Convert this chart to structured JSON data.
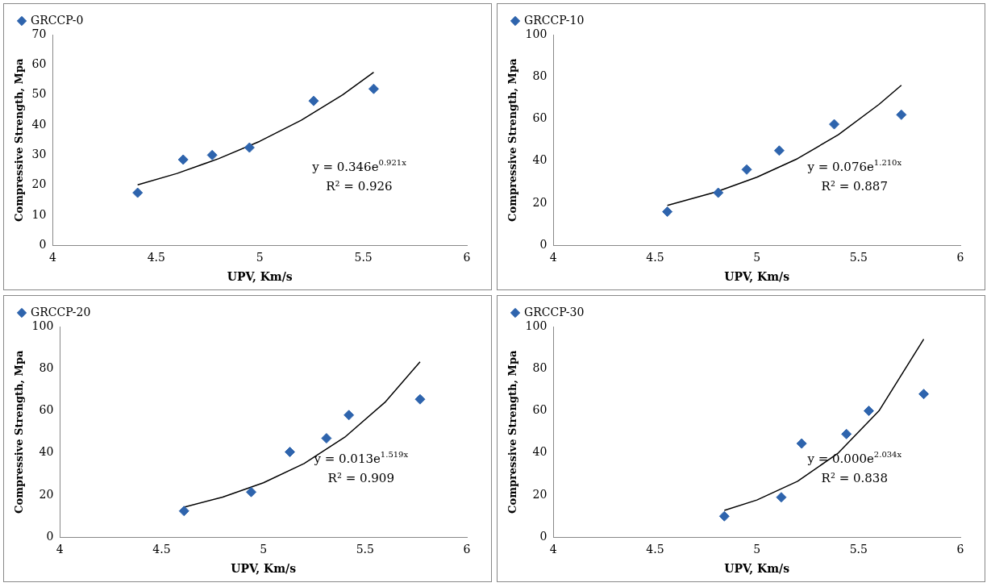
{
  "chart_data": [
    {
      "type": "scatter",
      "xlabel": "UPV, Km/s",
      "ylabel": "Compressive Strength, Mpa",
      "xlim": [
        4,
        6
      ],
      "xticks": [
        4,
        4.5,
        5,
        5.5,
        6
      ],
      "ylim": [
        0,
        70
      ],
      "yticks": [
        0,
        10,
        20,
        30,
        40,
        50,
        60,
        70
      ],
      "grid": false,
      "legend": "top",
      "marker": "diamond",
      "series": [
        {
          "name": "GRCCP-0",
          "color": "#2e64ad",
          "x": [
            4.41,
            4.63,
            4.77,
            4.95,
            5.26,
            5.55
          ],
          "values": [
            17.5,
            28.5,
            30,
            32.5,
            48,
            52
          ]
        },
        {
          "type": "line",
          "color": "#000000",
          "marker": "none",
          "line_style": "solid",
          "x": [
            4.41,
            4.6,
            4.8,
            5.0,
            5.2,
            5.4,
            5.55
          ],
          "values": [
            20.1,
            23.9,
            28.8,
            34.6,
            41.6,
            50,
            57.5
          ]
        }
      ],
      "annotations": [
        "y = 0.346e$^{0.921x}$",
        "R² = 0.926"
      ]
    },
    {
      "type": "scatter",
      "xlabel": "UPV, Km/s",
      "ylabel": "Compressive Strength, Mpa",
      "xlim": [
        4,
        6
      ],
      "xticks": [
        4,
        4.5,
        5,
        5.5,
        6
      ],
      "ylim": [
        0,
        100
      ],
      "yticks": [
        0,
        20,
        40,
        60,
        80,
        100
      ],
      "grid": false,
      "legend": "top",
      "marker": "diamond",
      "series": [
        {
          "name": "GRCCP-10",
          "color": "#2e64ad",
          "x": [
            4.56,
            4.81,
            4.95,
            5.11,
            5.38,
            5.71
          ],
          "values": [
            16,
            25,
            36,
            45,
            57.5,
            62
          ]
        },
        {
          "type": "line",
          "color": "#000000",
          "marker": "none",
          "line_style": "solid",
          "x": [
            4.56,
            4.8,
            5.0,
            5.2,
            5.4,
            5.6,
            5.71
          ],
          "values": [
            19,
            25.4,
            32.4,
            41.2,
            52.5,
            66.9,
            76
          ]
        }
      ],
      "annotations": [
        "y = 0.076e$^{1.210x}$",
        "R² = 0.887"
      ]
    },
    {
      "type": "scatter",
      "xlabel": "UPV, Km/s",
      "ylabel": "Compressive Strength, Mpa",
      "xlim": [
        4,
        6
      ],
      "xticks": [
        4,
        4.5,
        5,
        5.5,
        6
      ],
      "ylim": [
        0,
        100
      ],
      "yticks": [
        0,
        20,
        40,
        60,
        80,
        100
      ],
      "grid": false,
      "legend": "top",
      "marker": "diamond",
      "series": [
        {
          "name": "GRCCP-20",
          "color": "#2e64ad",
          "x": [
            4.61,
            4.94,
            5.13,
            5.31,
            5.42,
            5.77
          ],
          "values": [
            12.5,
            21.5,
            40.5,
            47,
            58,
            65.5
          ]
        },
        {
          "type": "line",
          "color": "#000000",
          "marker": "none",
          "line_style": "solid",
          "x": [
            4.61,
            4.8,
            5.0,
            5.2,
            5.4,
            5.6,
            5.77
          ],
          "values": [
            14.3,
            19.1,
            25.9,
            35,
            47.5,
            64.3,
            83.3
          ]
        }
      ],
      "annotations": [
        "y = 0.013e$^{1.519x}$",
        "R² = 0.909"
      ]
    },
    {
      "type": "scatter",
      "xlabel": "UPV, Km/s",
      "ylabel": "Compressive Strength, Mpa",
      "xlim": [
        4,
        6
      ],
      "xticks": [
        4,
        4.5,
        5,
        5.5,
        6
      ],
      "ylim": [
        0,
        100
      ],
      "yticks": [
        0,
        20,
        40,
        60,
        80,
        100
      ],
      "grid": false,
      "legend": "top",
      "marker": "diamond",
      "series": [
        {
          "name": "GRCCP-30",
          "color": "#2e64ad",
          "x": [
            4.84,
            5.12,
            5.22,
            5.44,
            5.55,
            5.82
          ],
          "values": [
            10,
            19,
            44.5,
            49,
            60,
            68
          ]
        },
        {
          "type": "line",
          "color": "#000000",
          "marker": "none",
          "line_style": "solid",
          "x": [
            4.84,
            5.0,
            5.2,
            5.4,
            5.6,
            5.82
          ],
          "values": [
            12.8,
            17.7,
            26.6,
            40,
            60,
            94
          ]
        }
      ],
      "annotations": [
        "y = 0.000e$^{2.034x}$",
        "R² = 0.838"
      ]
    }
  ]
}
